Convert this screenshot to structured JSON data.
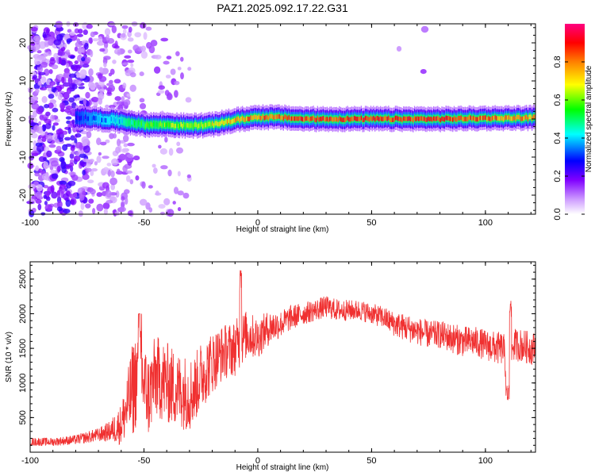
{
  "figure": {
    "title": "PAZ1.2025.092.17.22.G31"
  },
  "chart_data": [
    {
      "type": "heatmap",
      "xlabel": "Height of straight line (km)",
      "ylabel": "Frequency (Hz)",
      "xlim": [
        -100,
        122
      ],
      "ylim": [
        -25,
        25
      ],
      "xticks": [
        -100,
        -50,
        0,
        50,
        100
      ],
      "yticks": [
        -20,
        -10,
        0,
        10,
        20
      ],
      "colorbar": {
        "label": "Normalized spectral amplitude",
        "ticks": [
          0.0,
          0.2,
          0.4,
          0.6,
          0.8
        ],
        "range": [
          0,
          1
        ],
        "colors": [
          "#ffffff",
          "#cc99ff",
          "#8000ff",
          "#0000ff",
          "#00ffff",
          "#00ff00",
          "#ffff00",
          "#ff8000",
          "#ff0000",
          "#ff0080"
        ]
      },
      "ridge": {
        "description_points_x": [
          -80,
          -70,
          -60,
          -50,
          -40,
          -30,
          -20,
          -10,
          0,
          10,
          20,
          40,
          60,
          80,
          100,
          122
        ],
        "frequency_hz": [
          0.5,
          0.0,
          -0.5,
          -1.5,
          -1.5,
          -1.8,
          -1.5,
          -0.3,
          0.5,
          0.4,
          0.0,
          0.0,
          0.0,
          0.0,
          0.2,
          0.3
        ],
        "peak_amplitude": [
          0.3,
          0.4,
          0.45,
          0.6,
          0.65,
          0.7,
          0.75,
          0.85,
          0.9,
          0.9,
          0.95,
          0.95,
          0.95,
          0.95,
          0.9,
          0.85
        ]
      }
    },
    {
      "type": "line",
      "xlabel": "Height of straight line (km)",
      "ylabel": "SNR (10 * v/v)",
      "xlim": [
        -100,
        122
      ],
      "ylim": [
        0,
        2750
      ],
      "xticks": [
        -100,
        -50,
        0,
        50,
        100
      ],
      "yticks": [
        500,
        1000,
        1500,
        2000,
        2500
      ],
      "color": "#f03030",
      "series": [
        {
          "x": [
            -100,
            -90,
            -80,
            -70,
            -65,
            -60,
            -57,
            -55,
            -52,
            -50,
            -48,
            -45,
            -40,
            -35,
            -30,
            -28,
            -25,
            -20,
            -15,
            -10,
            -8,
            -5,
            0,
            5,
            10,
            15,
            20,
            25,
            30,
            35,
            40,
            45,
            50,
            55,
            60,
            65,
            70,
            75,
            80,
            85,
            90,
            95,
            100,
            105,
            108,
            110,
            112,
            115,
            120,
            122
          ],
          "values": [
            150,
            150,
            180,
            250,
            300,
            400,
            700,
            900,
            1200,
            1000,
            800,
            1100,
            1000,
            900,
            850,
            900,
            1100,
            1300,
            1450,
            1500,
            1600,
            1700,
            1650,
            1800,
            1850,
            1950,
            2000,
            2050,
            2100,
            2050,
            2050,
            2050,
            2000,
            1950,
            1850,
            1800,
            1750,
            1700,
            1700,
            1650,
            1600,
            1600,
            1550,
            1500,
            1500,
            900,
            1550,
            1550,
            1500,
            1500
          ],
          "envelope_amplitude": [
            60,
            60,
            70,
            100,
            150,
            300,
            500,
            700,
            700,
            600,
            600,
            600,
            600,
            550,
            550,
            500,
            500,
            450,
            400,
            400,
            400,
            350,
            300,
            250,
            200,
            180,
            160,
            160,
            160,
            160,
            150,
            150,
            150,
            160,
            180,
            200,
            200,
            200,
            200,
            220,
            220,
            220,
            220,
            240,
            240,
            200,
            240,
            240,
            240,
            240
          ]
        }
      ]
    }
  ]
}
